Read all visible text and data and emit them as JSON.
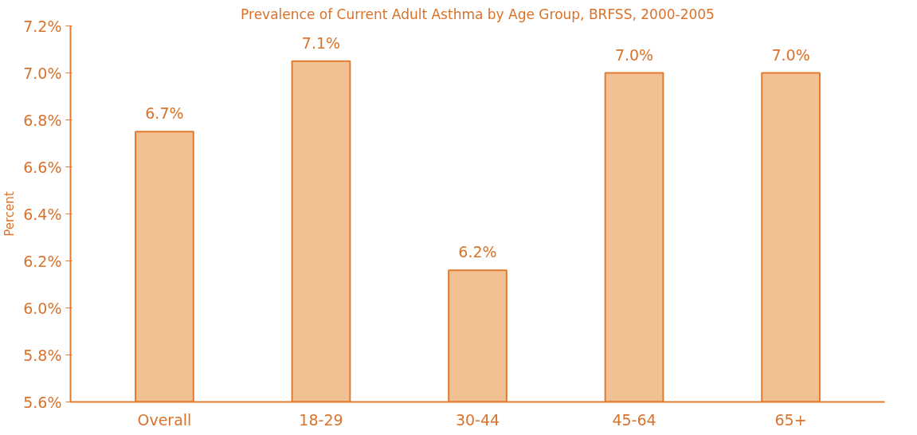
{
  "chart_data": {
    "type": "bar",
    "title": "Prevalence of Current Adult Asthma by Age Group, BRFSS, 2000-2005",
    "ylabel": "Percent",
    "categories": [
      "Overall",
      "18-29",
      "30-44",
      "45-64",
      "65+"
    ],
    "values": [
      6.75,
      7.05,
      6.16,
      7.0,
      7.0
    ],
    "value_labels": [
      "6.7%",
      "7.1%",
      "6.2%",
      "7.0%",
      "7.0%"
    ],
    "color": "#f2c193",
    "ylim": [
      5.6,
      7.2
    ],
    "yticks": [
      {
        "value": 5.6,
        "label": "5.6%"
      },
      {
        "value": 5.8,
        "label": "5.8%"
      },
      {
        "value": 6.0,
        "label": "6.0%"
      },
      {
        "value": 6.2,
        "label": "6.2%"
      },
      {
        "value": 6.4,
        "label": "6.4%"
      },
      {
        "value": 6.6,
        "label": "6.6%"
      },
      {
        "value": 6.8,
        "label": "6.8%"
      },
      {
        "value": 7.0,
        "label": "7.0%"
      },
      {
        "value": 7.2,
        "label": "7.2%"
      }
    ],
    "grid": false
  }
}
